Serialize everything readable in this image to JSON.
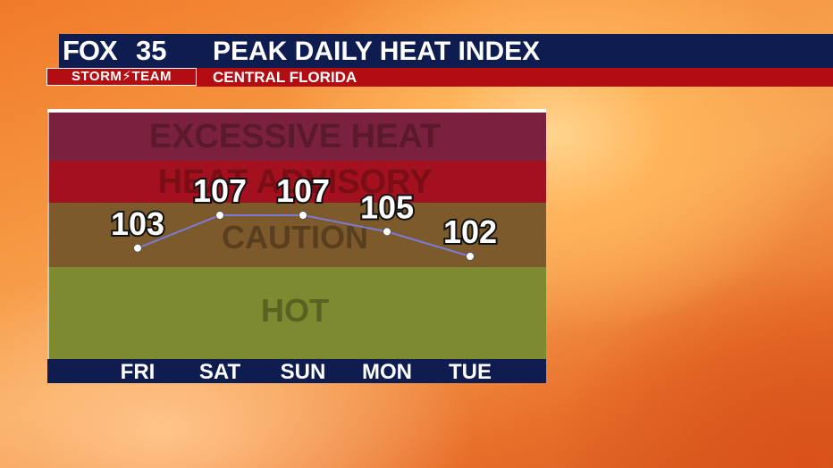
{
  "brand": {
    "logo": "FOX",
    "channel": "35",
    "team": "STORM⚡TEAM"
  },
  "header": {
    "title": "PEAK DAILY HEAT INDEX",
    "subtitle": "CENTRAL FLORIDA"
  },
  "colors": {
    "navy": "#0f1c4f",
    "red": "#b20d12",
    "band_excessive": "#7a2140",
    "band_advisory": "#a3111e",
    "band_caution": "#7c5a2c",
    "band_hot": "#7d8a2f",
    "line": "#7b7bd8"
  },
  "chart_data": {
    "type": "line",
    "title": "PEAK DAILY HEAT INDEX",
    "categories": [
      "FRI",
      "SAT",
      "SUN",
      "MON",
      "TUE"
    ],
    "values": [
      103,
      107,
      107,
      105,
      102
    ],
    "bands": [
      {
        "label": "EXCESSIVE HEAT"
      },
      {
        "label": "HEAT ADVISORY"
      },
      {
        "label": "CAUTION"
      },
      {
        "label": "HOT"
      }
    ]
  }
}
